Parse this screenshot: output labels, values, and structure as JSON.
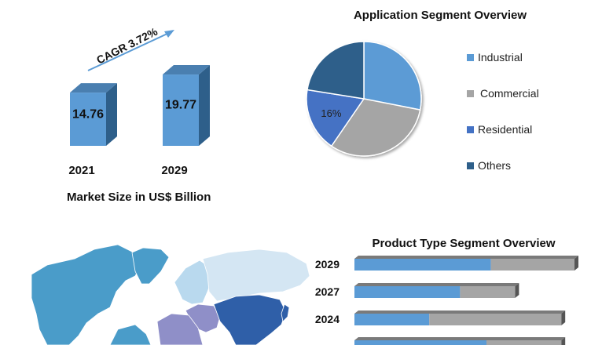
{
  "chart_data": [
    {
      "type": "bar",
      "categories": [
        "2021",
        "2029"
      ],
      "values": [
        14.76,
        19.77
      ],
      "data_labels": [
        "14.76",
        "19.77"
      ],
      "xlabel": "Market Size in US$ Billion",
      "annotation": "CAGR 3.72%",
      "colors": {
        "bar_front": "#5b9bd5",
        "bar_side": "#2e5f8a",
        "bar_top": "#4a7fb0"
      }
    },
    {
      "type": "pie",
      "title": "Application Segment  Overview",
      "labels": [
        "Industrial",
        "Commercial",
        "Residential",
        "Others"
      ],
      "values": [
        25,
        28,
        16,
        20
      ],
      "data_labels": [
        "",
        "",
        "16%",
        ""
      ],
      "colors": [
        "#5b9bd5",
        "#a5a5a5",
        "#4472c4",
        "#2e5f8a"
      ],
      "legend_position": "right"
    },
    {
      "type": "bar",
      "orientation": "horizontal",
      "stacked": true,
      "title": "Product Type Segment Overview",
      "categories": [
        "2029",
        "2027",
        "2024",
        ""
      ],
      "series": [
        {
          "values": [
            62,
            48,
            34,
            60
          ]
        },
        {
          "values": [
            38,
            25,
            60,
            34
          ]
        }
      ],
      "colors": [
        "#5b9bd5",
        "#a5a5a5"
      ]
    }
  ],
  "map": {
    "colors": {
      "north_america": "#4a9cc9",
      "south_america": "#4a9cc9",
      "europe": "#b9d9ee",
      "russia": "#d4e6f3",
      "asia_pacific": "#2f5fa8",
      "middle_east": "#8f8fc8",
      "africa": "#8f8fc8",
      "greenland": "#4a9cc9"
    }
  }
}
